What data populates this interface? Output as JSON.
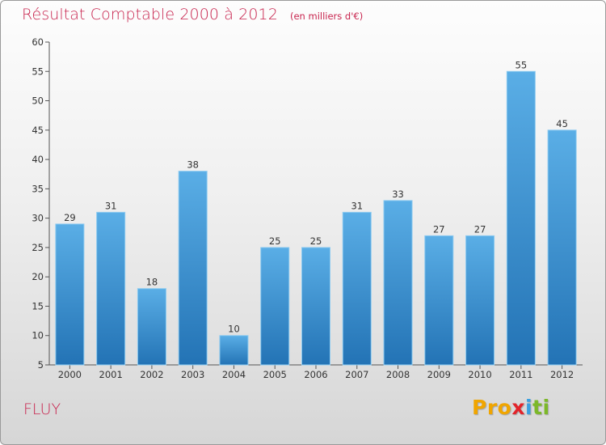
{
  "title": "Résultat Comptable 2000 à 2012",
  "unit_label": "(en milliers d'€)",
  "commune": "FLUY",
  "logo": {
    "p1": "Pro",
    "p2": "x",
    "p3": "i",
    "p4": "ti"
  },
  "colors": {
    "accent": "#c8244e",
    "bar_top": "#5aaee6",
    "bar_bottom": "#2373b5"
  },
  "chart_data": {
    "type": "bar",
    "title": "Résultat Comptable 2000 à 2012",
    "ylabel": "en milliers d'€",
    "categories": [
      "2000",
      "2001",
      "2002",
      "2003",
      "2004",
      "2005",
      "2006",
      "2007",
      "2008",
      "2009",
      "2010",
      "2011",
      "2012"
    ],
    "values": [
      29,
      31,
      18,
      38,
      10,
      25,
      25,
      31,
      33,
      27,
      27,
      55,
      45
    ],
    "ylim": [
      5,
      60
    ],
    "yticks": [
      5,
      10,
      15,
      20,
      25,
      30,
      35,
      40,
      45,
      50,
      55,
      60
    ],
    "grid": false,
    "legend": "none"
  }
}
